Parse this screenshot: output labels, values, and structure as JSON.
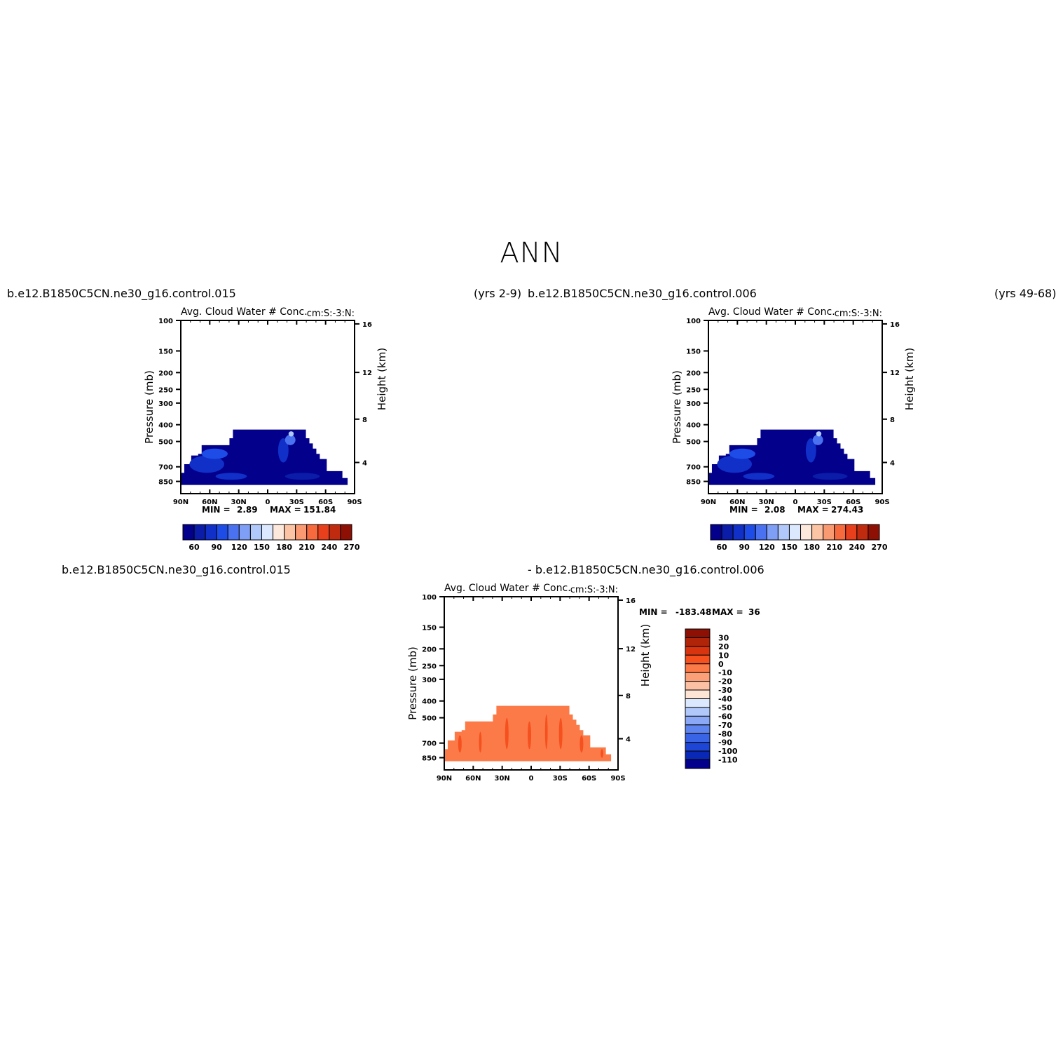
{
  "page": {
    "title": "ANN"
  },
  "panels": [
    {
      "case_left": "b.e12.B1850C5CN.ne30_g16.control.015",
      "case_right": "(yrs 2-9)",
      "variable_title": "Avg. Cloud Water # Conc.",
      "units": "cm:S:-3:N:",
      "min_label": "MIN =",
      "min_value": "2.89",
      "max_label": "MAX =",
      "max_value": "151.84"
    },
    {
      "case_left": "b.e12.B1850C5CN.ne30_g16.control.006",
      "case_right": "(yrs 49-68)",
      "variable_title": "Avg. Cloud Water # Conc.",
      "units": "cm:S:-3:N:",
      "min_label": "MIN =",
      "min_value": "2.08",
      "max_label": "MAX =",
      "max_value": "274.43"
    },
    {
      "case_left": "b.e12.B1850C5CN.ne30_g16.control.015",
      "case_right": "- b.e12.B1850C5CN.ne30_g16.control.006",
      "variable_title": "Avg. Cloud Water # Conc.",
      "units": "cm:S:-3:N:",
      "min_label": "MIN =",
      "min_value": "-183.48",
      "max_label": "MAX =",
      "max_value": "36.26"
    }
  ],
  "chart_data": [
    {
      "type": "heatmap",
      "title": "Avg. Cloud Water # Conc.",
      "xlabel": "",
      "ylabel": "Pressure (mb)",
      "ylabel_right": "Height (km)",
      "x_ticks": [
        "90N",
        "60N",
        "30N",
        "0",
        "30S",
        "60S",
        "90S"
      ],
      "y_ticks": [
        100,
        150,
        200,
        250,
        300,
        400,
        500,
        700,
        850
      ],
      "y_ticks_right": [
        16,
        12,
        8,
        4
      ],
      "y_scale": "log",
      "ylim": [
        100,
        1000
      ],
      "colorbar_labels": [
        "60",
        "90",
        "120",
        "150",
        "180",
        "210",
        "240",
        "270"
      ],
      "colorbar_orientation": "horizontal",
      "colors": [
        "#03008c",
        "#0a1ca8",
        "#1030c8",
        "#1e4ce6",
        "#4a72f0",
        "#7f9ef5",
        "#b0c8fa",
        "#dbe8fd",
        "#fde8dc",
        "#fbc4a4",
        "#f99a72",
        "#f76a3e",
        "#e8401c",
        "#c02a0e",
        "#8e1004"
      ],
      "field_min": 2.89,
      "field_max": 151.84
    },
    {
      "type": "heatmap",
      "title": "Avg. Cloud Water # Conc.",
      "xlabel": "",
      "ylabel": "Pressure (mb)",
      "ylabel_right": "Height (km)",
      "x_ticks": [
        "90N",
        "60N",
        "30N",
        "0",
        "30S",
        "60S",
        "90S"
      ],
      "y_ticks": [
        100,
        150,
        200,
        250,
        300,
        400,
        500,
        700,
        850
      ],
      "y_ticks_right": [
        16,
        12,
        8,
        4
      ],
      "y_scale": "log",
      "ylim": [
        100,
        1000
      ],
      "colorbar_labels": [
        "60",
        "90",
        "120",
        "150",
        "180",
        "210",
        "240",
        "270"
      ],
      "colorbar_orientation": "horizontal",
      "colors": [
        "#03008c",
        "#0a1ca8",
        "#1030c8",
        "#1e4ce6",
        "#4a72f0",
        "#7f9ef5",
        "#b0c8fa",
        "#dbe8fd",
        "#fde8dc",
        "#fbc4a4",
        "#f99a72",
        "#f76a3e",
        "#e8401c",
        "#c02a0e",
        "#8e1004"
      ],
      "field_min": 2.08,
      "field_max": 274.43
    },
    {
      "type": "heatmap",
      "title": "Avg. Cloud Water # Conc.",
      "xlabel": "",
      "ylabel": "Pressure (mb)",
      "ylabel_right": "Height (km)",
      "x_ticks": [
        "90N",
        "60N",
        "30N",
        "0",
        "30S",
        "60S",
        "90S"
      ],
      "y_ticks": [
        100,
        150,
        200,
        250,
        300,
        400,
        500,
        700,
        850
      ],
      "y_ticks_right": [
        16,
        12,
        8,
        4
      ],
      "y_scale": "log",
      "ylim": [
        100,
        1000
      ],
      "colorbar_labels": [
        "30",
        "20",
        "10",
        "0",
        "-10",
        "-20",
        "-30",
        "-40",
        "-50",
        "-60",
        "-70",
        "-80",
        "-90",
        "-100",
        "-110"
      ],
      "colorbar_orientation": "vertical",
      "colors": [
        "#8e1004",
        "#b0240a",
        "#d83410",
        "#f5501e",
        "#fb7a48",
        "#fb9f78",
        "#fcc0a4",
        "#fde4d4",
        "#dbe8fd",
        "#b0c8fa",
        "#8aa8f5",
        "#5e84ef",
        "#3a64e6",
        "#1e46d6",
        "#0a28b8",
        "#03008c"
      ],
      "field_min": -183.48,
      "field_max": 36.26
    }
  ]
}
